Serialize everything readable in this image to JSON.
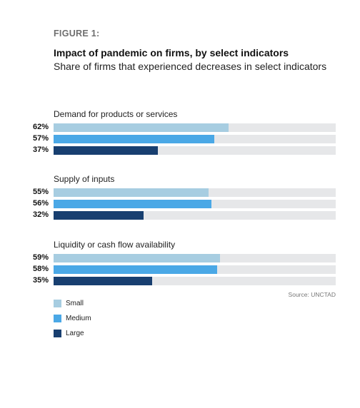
{
  "figure_label": "FIGURE 1:",
  "colors": {
    "small": "#a7cde1",
    "medium": "#4aa8e6",
    "large": "#183f70",
    "track": "#e6e7e9"
  },
  "chart_data": {
    "type": "bar",
    "orientation": "horizontal",
    "title": "Impact of pandemic on firms, by select indicators",
    "subtitle": "Share of firms that experienced decreases in select indicators",
    "source": "Source: UNCTAD",
    "xlim": [
      0,
      100
    ],
    "categories": [
      "Demand for products or services",
      "Supply of inputs",
      "Liquidity or cash flow availability"
    ],
    "series": [
      {
        "name": "Small",
        "values": [
          62,
          55,
          59
        ],
        "labels": [
          "62%",
          "55%",
          "59%"
        ]
      },
      {
        "name": "Medium",
        "values": [
          57,
          56,
          58
        ],
        "labels": [
          "57%",
          "56%",
          "58%"
        ]
      },
      {
        "name": "Large",
        "values": [
          37,
          32,
          35
        ],
        "labels": [
          "37%",
          "32%",
          "35%"
        ]
      }
    ],
    "legend_position": "bottom-left"
  }
}
